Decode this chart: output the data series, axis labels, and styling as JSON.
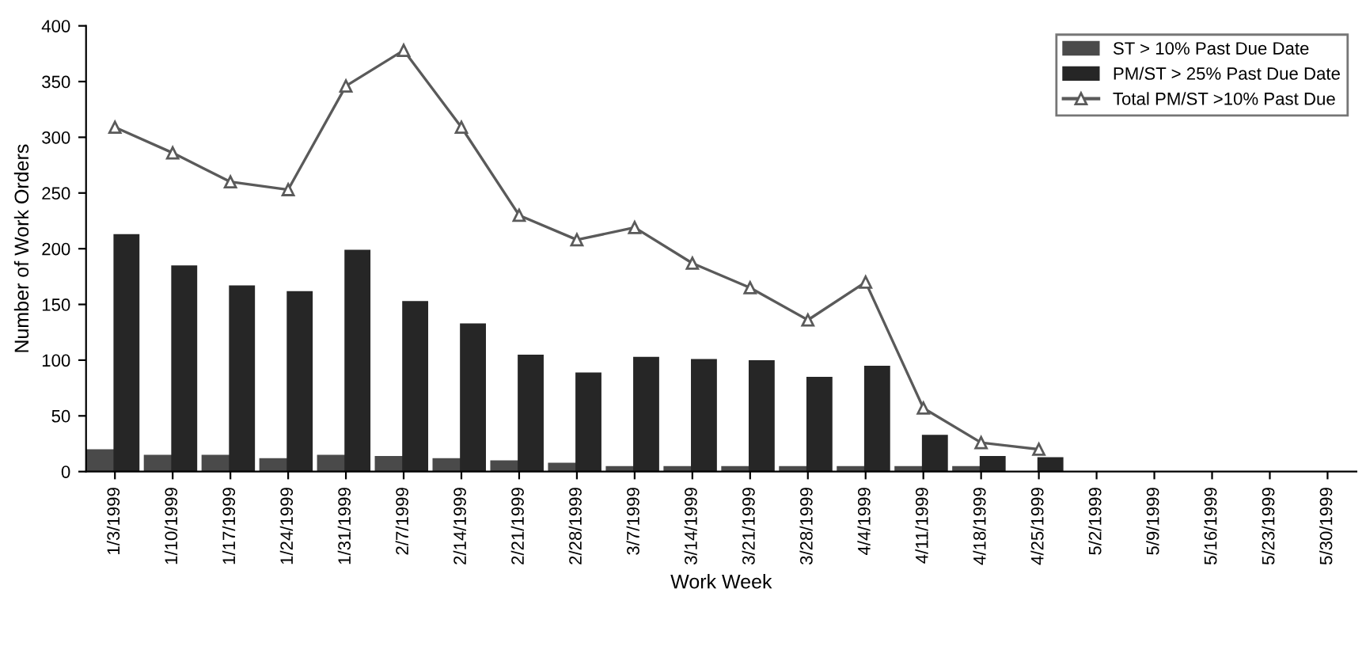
{
  "chart_data": {
    "type": "bar",
    "xlabel": "Work Week",
    "ylabel": "Number of Work Orders",
    "categories": [
      "1/3/1999",
      "1/10/1999",
      "1/17/1999",
      "1/24/1999",
      "1/31/1999",
      "2/7/1999",
      "2/14/1999",
      "2/21/1999",
      "2/28/1999",
      "3/7/1999",
      "3/14/1999",
      "3/21/1999",
      "3/28/1999",
      "4/4/1999",
      "4/11/1999",
      "4/18/1999",
      "4/25/1999",
      "5/2/1999",
      "5/9/1999",
      "5/16/1999",
      "5/23/1999",
      "5/30/1999"
    ],
    "series": [
      {
        "name": "ST > 10% Past Due Date",
        "color": "#4a4a4a",
        "values": [
          20,
          15,
          15,
          12,
          15,
          14,
          12,
          10,
          8,
          5,
          5,
          5,
          5,
          5,
          5,
          5,
          0,
          0,
          0,
          0,
          0,
          0
        ]
      },
      {
        "name": "PM/ST > 25% Past Due Date",
        "color": "#262626",
        "values": [
          213,
          185,
          167,
          162,
          199,
          153,
          133,
          105,
          89,
          103,
          101,
          100,
          85,
          95,
          33,
          14,
          13,
          0,
          0,
          0,
          0,
          0
        ]
      },
      {
        "name": "Total PM/ST >10% Past Due",
        "type": "line",
        "color": "#5a5a5a",
        "marker": "triangle",
        "values": [
          309,
          286,
          260,
          253,
          346,
          378,
          309,
          230,
          208,
          219,
          187,
          165,
          136,
          170,
          57,
          26,
          20,
          null,
          null,
          null,
          null,
          null
        ]
      }
    ],
    "ylim": [
      0,
      400
    ],
    "yticks": [
      0,
      50,
      100,
      150,
      200,
      250,
      300,
      350,
      400
    ],
    "grid": false,
    "legend": "top right"
  }
}
